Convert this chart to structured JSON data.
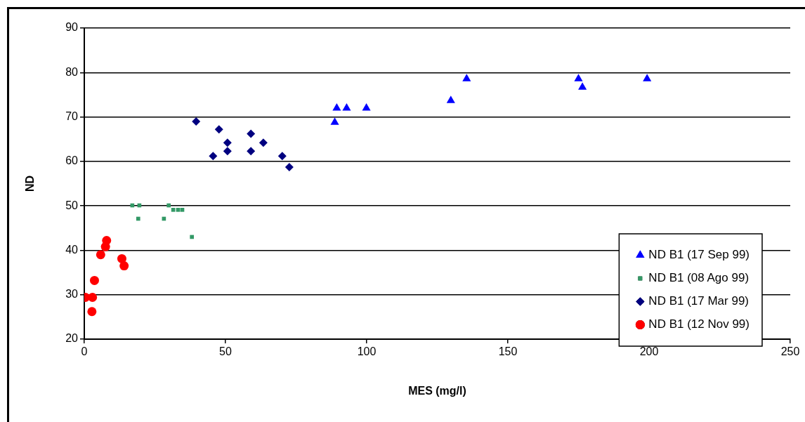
{
  "chart_data": {
    "type": "scatter",
    "xlabel": "MES (mg/l)",
    "ylabel": "ND",
    "xlim": [
      0,
      250
    ],
    "xticks": [
      0,
      50,
      100,
      150,
      200,
      250
    ],
    "ylim": [
      20,
      90
    ],
    "yticks": [
      20,
      30,
      40,
      50,
      60,
      70,
      80,
      90
    ],
    "grid": "y",
    "legend": "bottom right",
    "series": [
      {
        "name": "ND B1 (17 Sep 99)",
        "color": "#0000ff",
        "marker": "triangle",
        "x": [
          89.4,
          92.9,
          99.9,
          88.7,
          129.8,
          135.4,
          175,
          176.4,
          199.3
        ],
        "values": [
          72,
          72,
          72,
          68.8,
          73.7,
          78.6,
          78.6,
          76.7,
          78.6
        ]
      },
      {
        "name": "ND B1 (08 Ago 99)",
        "color": "#339966",
        "marker": "square",
        "x": [
          17,
          19.5,
          19.1,
          28.2,
          29.9,
          31.5,
          33.2,
          34.7,
          38.1
        ],
        "values": [
          50.1,
          50.1,
          47.1,
          47.1,
          50.1,
          49.1,
          49.1,
          49.1,
          43
        ]
      },
      {
        "name": "ND B1 (17 Mar 99)",
        "color": "#000080",
        "marker": "diamond",
        "x": [
          39.6,
          47.7,
          45.6,
          50.7,
          50.7,
          59,
          59,
          63.4,
          70.1,
          72.6
        ],
        "values": [
          69,
          67.2,
          61.2,
          64.2,
          62.3,
          66.2,
          62.3,
          64.2,
          61.2,
          58.7
        ]
      },
      {
        "name": "ND B1 (12 Nov 99)",
        "color": "#ff0000",
        "marker": "circle",
        "x": [
          0.4,
          2.9,
          2.7,
          3.6,
          5.8,
          7.5,
          7.9,
          13.3,
          14.1
        ],
        "values": [
          29.4,
          29.4,
          26.2,
          33.2,
          39,
          40.8,
          42.2,
          38.1,
          36.5
        ]
      }
    ]
  }
}
